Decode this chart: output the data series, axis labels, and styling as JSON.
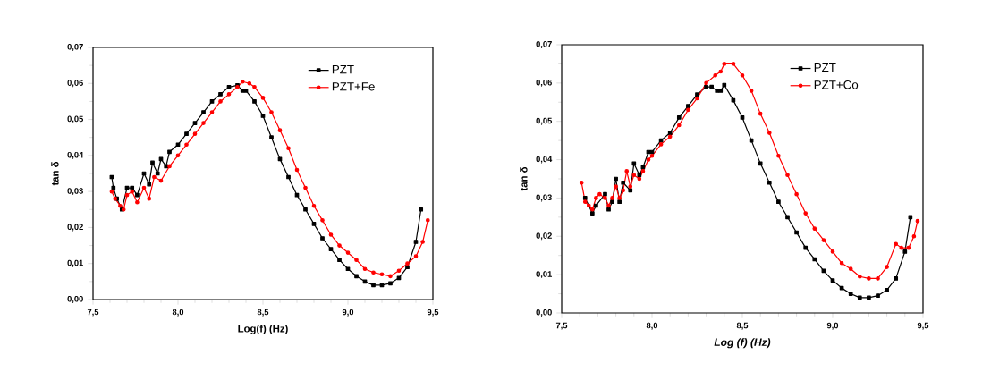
{
  "chart_data": [
    {
      "type": "line",
      "xlabel": "Log(f) (Hz)",
      "ylabel": "tan δ",
      "xlim": [
        7.5,
        9.5
      ],
      "ylim": [
        0,
        0.07
      ],
      "xticks": [
        {
          "value": 7.5,
          "label": "7,5"
        },
        {
          "value": 8.0,
          "label": "8,0"
        },
        {
          "value": 8.5,
          "label": "8,5"
        },
        {
          "value": 9.0,
          "label": "9,0"
        },
        {
          "value": 9.5,
          "label": "9,5"
        }
      ],
      "yticks": [
        {
          "value": 0,
          "label": "0,00"
        },
        {
          "value": 0.01,
          "label": "0,01"
        },
        {
          "value": 0.02,
          "label": "0,02"
        },
        {
          "value": 0.03,
          "label": "0,03"
        },
        {
          "value": 0.04,
          "label": "0,04"
        },
        {
          "value": 0.05,
          "label": "0,05"
        },
        {
          "value": 0.06,
          "label": "0,06"
        },
        {
          "value": 0.07,
          "label": "0,07"
        }
      ],
      "legend": "top right",
      "grid": false,
      "line_style": "solid",
      "series": [
        {
          "name": "PZT",
          "color": "#000000",
          "marker": "square",
          "x": [
            7.61,
            7.62,
            7.64,
            7.67,
            7.7,
            7.73,
            7.76,
            7.8,
            7.83,
            7.85,
            7.88,
            7.9,
            7.93,
            7.95,
            8.0,
            8.05,
            8.1,
            8.15,
            8.2,
            8.25,
            8.3,
            8.35,
            8.38,
            8.4,
            8.45,
            8.5,
            8.55,
            8.6,
            8.65,
            8.7,
            8.75,
            8.8,
            8.85,
            8.9,
            8.95,
            9.0,
            9.05,
            9.1,
            9.15,
            9.2,
            9.25,
            9.3,
            9.35,
            9.4,
            9.43
          ],
          "values": [
            0.034,
            0.031,
            0.028,
            0.025,
            0.031,
            0.031,
            0.029,
            0.035,
            0.032,
            0.038,
            0.035,
            0.039,
            0.037,
            0.041,
            0.043,
            0.046,
            0.049,
            0.052,
            0.055,
            0.057,
            0.059,
            0.0595,
            0.058,
            0.058,
            0.055,
            0.051,
            0.045,
            0.039,
            0.034,
            0.029,
            0.025,
            0.021,
            0.017,
            0.014,
            0.011,
            0.0085,
            0.0065,
            0.005,
            0.004,
            0.004,
            0.0045,
            0.006,
            0.009,
            0.016,
            0.025
          ]
        },
        {
          "name": "PZT+Fe",
          "color": "#ff0000",
          "marker": "circle",
          "x": [
            7.61,
            7.63,
            7.66,
            7.68,
            7.7,
            7.73,
            7.76,
            7.8,
            7.83,
            7.86,
            7.9,
            7.95,
            8.0,
            8.05,
            8.1,
            8.15,
            8.2,
            8.25,
            8.3,
            8.35,
            8.38,
            8.42,
            8.45,
            8.5,
            8.55,
            8.6,
            8.65,
            8.7,
            8.75,
            8.8,
            8.85,
            8.9,
            8.95,
            9.0,
            9.05,
            9.1,
            9.15,
            9.2,
            9.25,
            9.3,
            9.35,
            9.4,
            9.44,
            9.47
          ],
          "values": [
            0.03,
            0.028,
            0.026,
            0.025,
            0.029,
            0.03,
            0.027,
            0.031,
            0.028,
            0.034,
            0.033,
            0.037,
            0.04,
            0.043,
            0.046,
            0.049,
            0.052,
            0.055,
            0.057,
            0.059,
            0.0605,
            0.06,
            0.059,
            0.056,
            0.052,
            0.047,
            0.042,
            0.036,
            0.031,
            0.026,
            0.022,
            0.018,
            0.015,
            0.013,
            0.011,
            0.0085,
            0.0075,
            0.007,
            0.0065,
            0.008,
            0.01,
            0.012,
            0.016,
            0.022
          ]
        }
      ]
    },
    {
      "type": "line",
      "xlabel": "Log (f) (Hz)",
      "ylabel": "tan δ",
      "xlim": [
        7.5,
        9.5
      ],
      "ylim": [
        0,
        0.07
      ],
      "xticks": [
        {
          "value": 7.5,
          "label": "7,5"
        },
        {
          "value": 8.0,
          "label": "8,0"
        },
        {
          "value": 8.5,
          "label": "8,5"
        },
        {
          "value": 9.0,
          "label": "9,0"
        },
        {
          "value": 9.5,
          "label": "9,5"
        }
      ],
      "yticks": [
        {
          "value": 0,
          "label": "0,00"
        },
        {
          "value": 0.01,
          "label": "0,01"
        },
        {
          "value": 0.02,
          "label": "0,02"
        },
        {
          "value": 0.03,
          "label": "0,03"
        },
        {
          "value": 0.04,
          "label": "0,04"
        },
        {
          "value": 0.05,
          "label": "0,05"
        },
        {
          "value": 0.06,
          "label": "0,06"
        },
        {
          "value": 0.07,
          "label": "0,07"
        }
      ],
      "legend": "top right",
      "grid": false,
      "line_style": "solid",
      "series": [
        {
          "name": "PZT",
          "color": "#000000",
          "marker": "square",
          "x": [
            7.63,
            7.67,
            7.69,
            7.74,
            7.76,
            7.78,
            7.8,
            7.82,
            7.84,
            7.88,
            7.9,
            7.93,
            7.95,
            7.98,
            8.0,
            8.05,
            8.1,
            8.15,
            8.2,
            8.25,
            8.3,
            8.33,
            8.36,
            8.38,
            8.4,
            8.45,
            8.5,
            8.55,
            8.6,
            8.65,
            8.7,
            8.75,
            8.8,
            8.85,
            8.9,
            8.95,
            9.0,
            9.05,
            9.1,
            9.15,
            9.2,
            9.25,
            9.3,
            9.35,
            9.4,
            9.43
          ],
          "values": [
            0.03,
            0.026,
            0.028,
            0.031,
            0.027,
            0.029,
            0.035,
            0.029,
            0.034,
            0.032,
            0.039,
            0.036,
            0.038,
            0.042,
            0.042,
            0.045,
            0.047,
            0.051,
            0.054,
            0.057,
            0.059,
            0.059,
            0.058,
            0.058,
            0.0595,
            0.0555,
            0.051,
            0.045,
            0.039,
            0.034,
            0.029,
            0.025,
            0.021,
            0.017,
            0.014,
            0.011,
            0.0085,
            0.0065,
            0.005,
            0.004,
            0.004,
            0.0045,
            0.006,
            0.009,
            0.016,
            0.025
          ]
        },
        {
          "name": "PZT+Co",
          "color": "#ff0000",
          "marker": "circle",
          "x": [
            7.61,
            7.63,
            7.65,
            7.67,
            7.69,
            7.71,
            7.74,
            7.76,
            7.78,
            7.8,
            7.82,
            7.84,
            7.86,
            7.88,
            7.9,
            7.93,
            7.95,
            7.98,
            8.0,
            8.05,
            8.1,
            8.15,
            8.2,
            8.25,
            8.3,
            8.35,
            8.38,
            8.4,
            8.45,
            8.5,
            8.55,
            8.6,
            8.65,
            8.7,
            8.75,
            8.8,
            8.85,
            8.9,
            8.95,
            9.0,
            9.05,
            9.1,
            9.15,
            9.2,
            9.25,
            9.3,
            9.35,
            9.38,
            9.42,
            9.45,
            9.47
          ],
          "values": [
            0.034,
            0.029,
            0.028,
            0.027,
            0.03,
            0.031,
            0.03,
            0.028,
            0.03,
            0.033,
            0.03,
            0.032,
            0.037,
            0.033,
            0.036,
            0.035,
            0.037,
            0.04,
            0.041,
            0.044,
            0.046,
            0.049,
            0.053,
            0.056,
            0.06,
            0.062,
            0.063,
            0.065,
            0.065,
            0.062,
            0.058,
            0.052,
            0.047,
            0.041,
            0.036,
            0.031,
            0.026,
            0.022,
            0.019,
            0.016,
            0.013,
            0.0115,
            0.0095,
            0.009,
            0.009,
            0.012,
            0.018,
            0.017,
            0.017,
            0.02,
            0.024
          ]
        }
      ]
    }
  ]
}
